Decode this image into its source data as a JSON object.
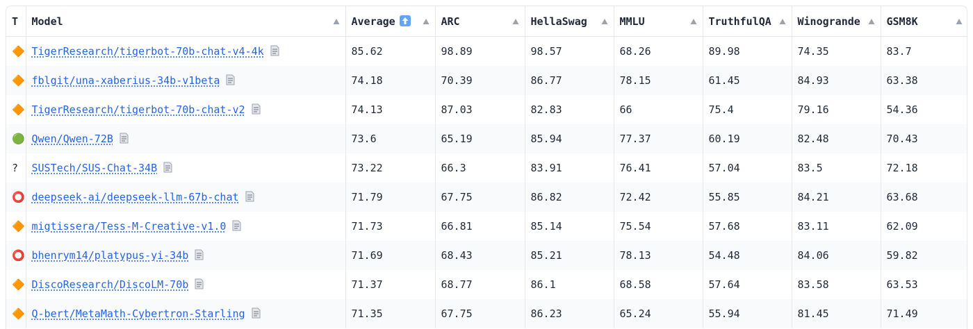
{
  "table": {
    "headers": [
      "T",
      "Model",
      "Average",
      "ARC",
      "HellaSwag",
      "MMLU",
      "TruthfulQA",
      "Winogrande",
      "GSM8K"
    ],
    "rows": [
      [
        "🔶",
        "TigerResearch/tigerbot-70b-chat-v4-4k",
        85.62,
        98.89,
        98.57,
        68.26,
        89.98,
        74.35,
        83.7
      ],
      [
        "🔶",
        "fblgit/una-xaberius-34b-v1beta",
        74.18,
        70.39,
        86.77,
        78.15,
        61.45,
        84.93,
        63.38
      ],
      [
        "🔶",
        "TigerResearch/tigerbot-70b-chat-v2",
        74.13,
        87.03,
        82.83,
        66,
        75.4,
        79.16,
        54.36
      ],
      [
        "🟢",
        "Qwen/Qwen-72B",
        73.6,
        65.19,
        85.94,
        77.37,
        60.19,
        82.48,
        70.43
      ],
      [
        "?",
        "SUSTech/SUS-Chat-34B",
        73.22,
        66.3,
        83.91,
        76.41,
        57.04,
        83.5,
        72.18
      ],
      [
        "⭕",
        "deepseek-ai/deepseek-llm-67b-chat",
        71.79,
        67.75,
        86.82,
        72.42,
        55.85,
        84.21,
        63.68
      ],
      [
        "🔶",
        "migtissera/Tess-M-Creative-v1.0",
        71.73,
        66.81,
        85.14,
        75.54,
        57.68,
        83.11,
        62.09
      ],
      [
        "⭕",
        "bhenrym14/platypus-yi-34b",
        71.69,
        68.43,
        85.21,
        78.13,
        54.48,
        84.06,
        59.82
      ],
      [
        "🔶",
        "DiscoResearch/DiscoLM-70b",
        71.37,
        68.77,
        86.1,
        68.58,
        57.64,
        83.58,
        63.53
      ],
      [
        "🔶",
        "Q-bert/MetaMath-Cybertron-Starling",
        71.35,
        67.75,
        86.23,
        65.24,
        55.94,
        81.45,
        71.49
      ]
    ]
  }
}
